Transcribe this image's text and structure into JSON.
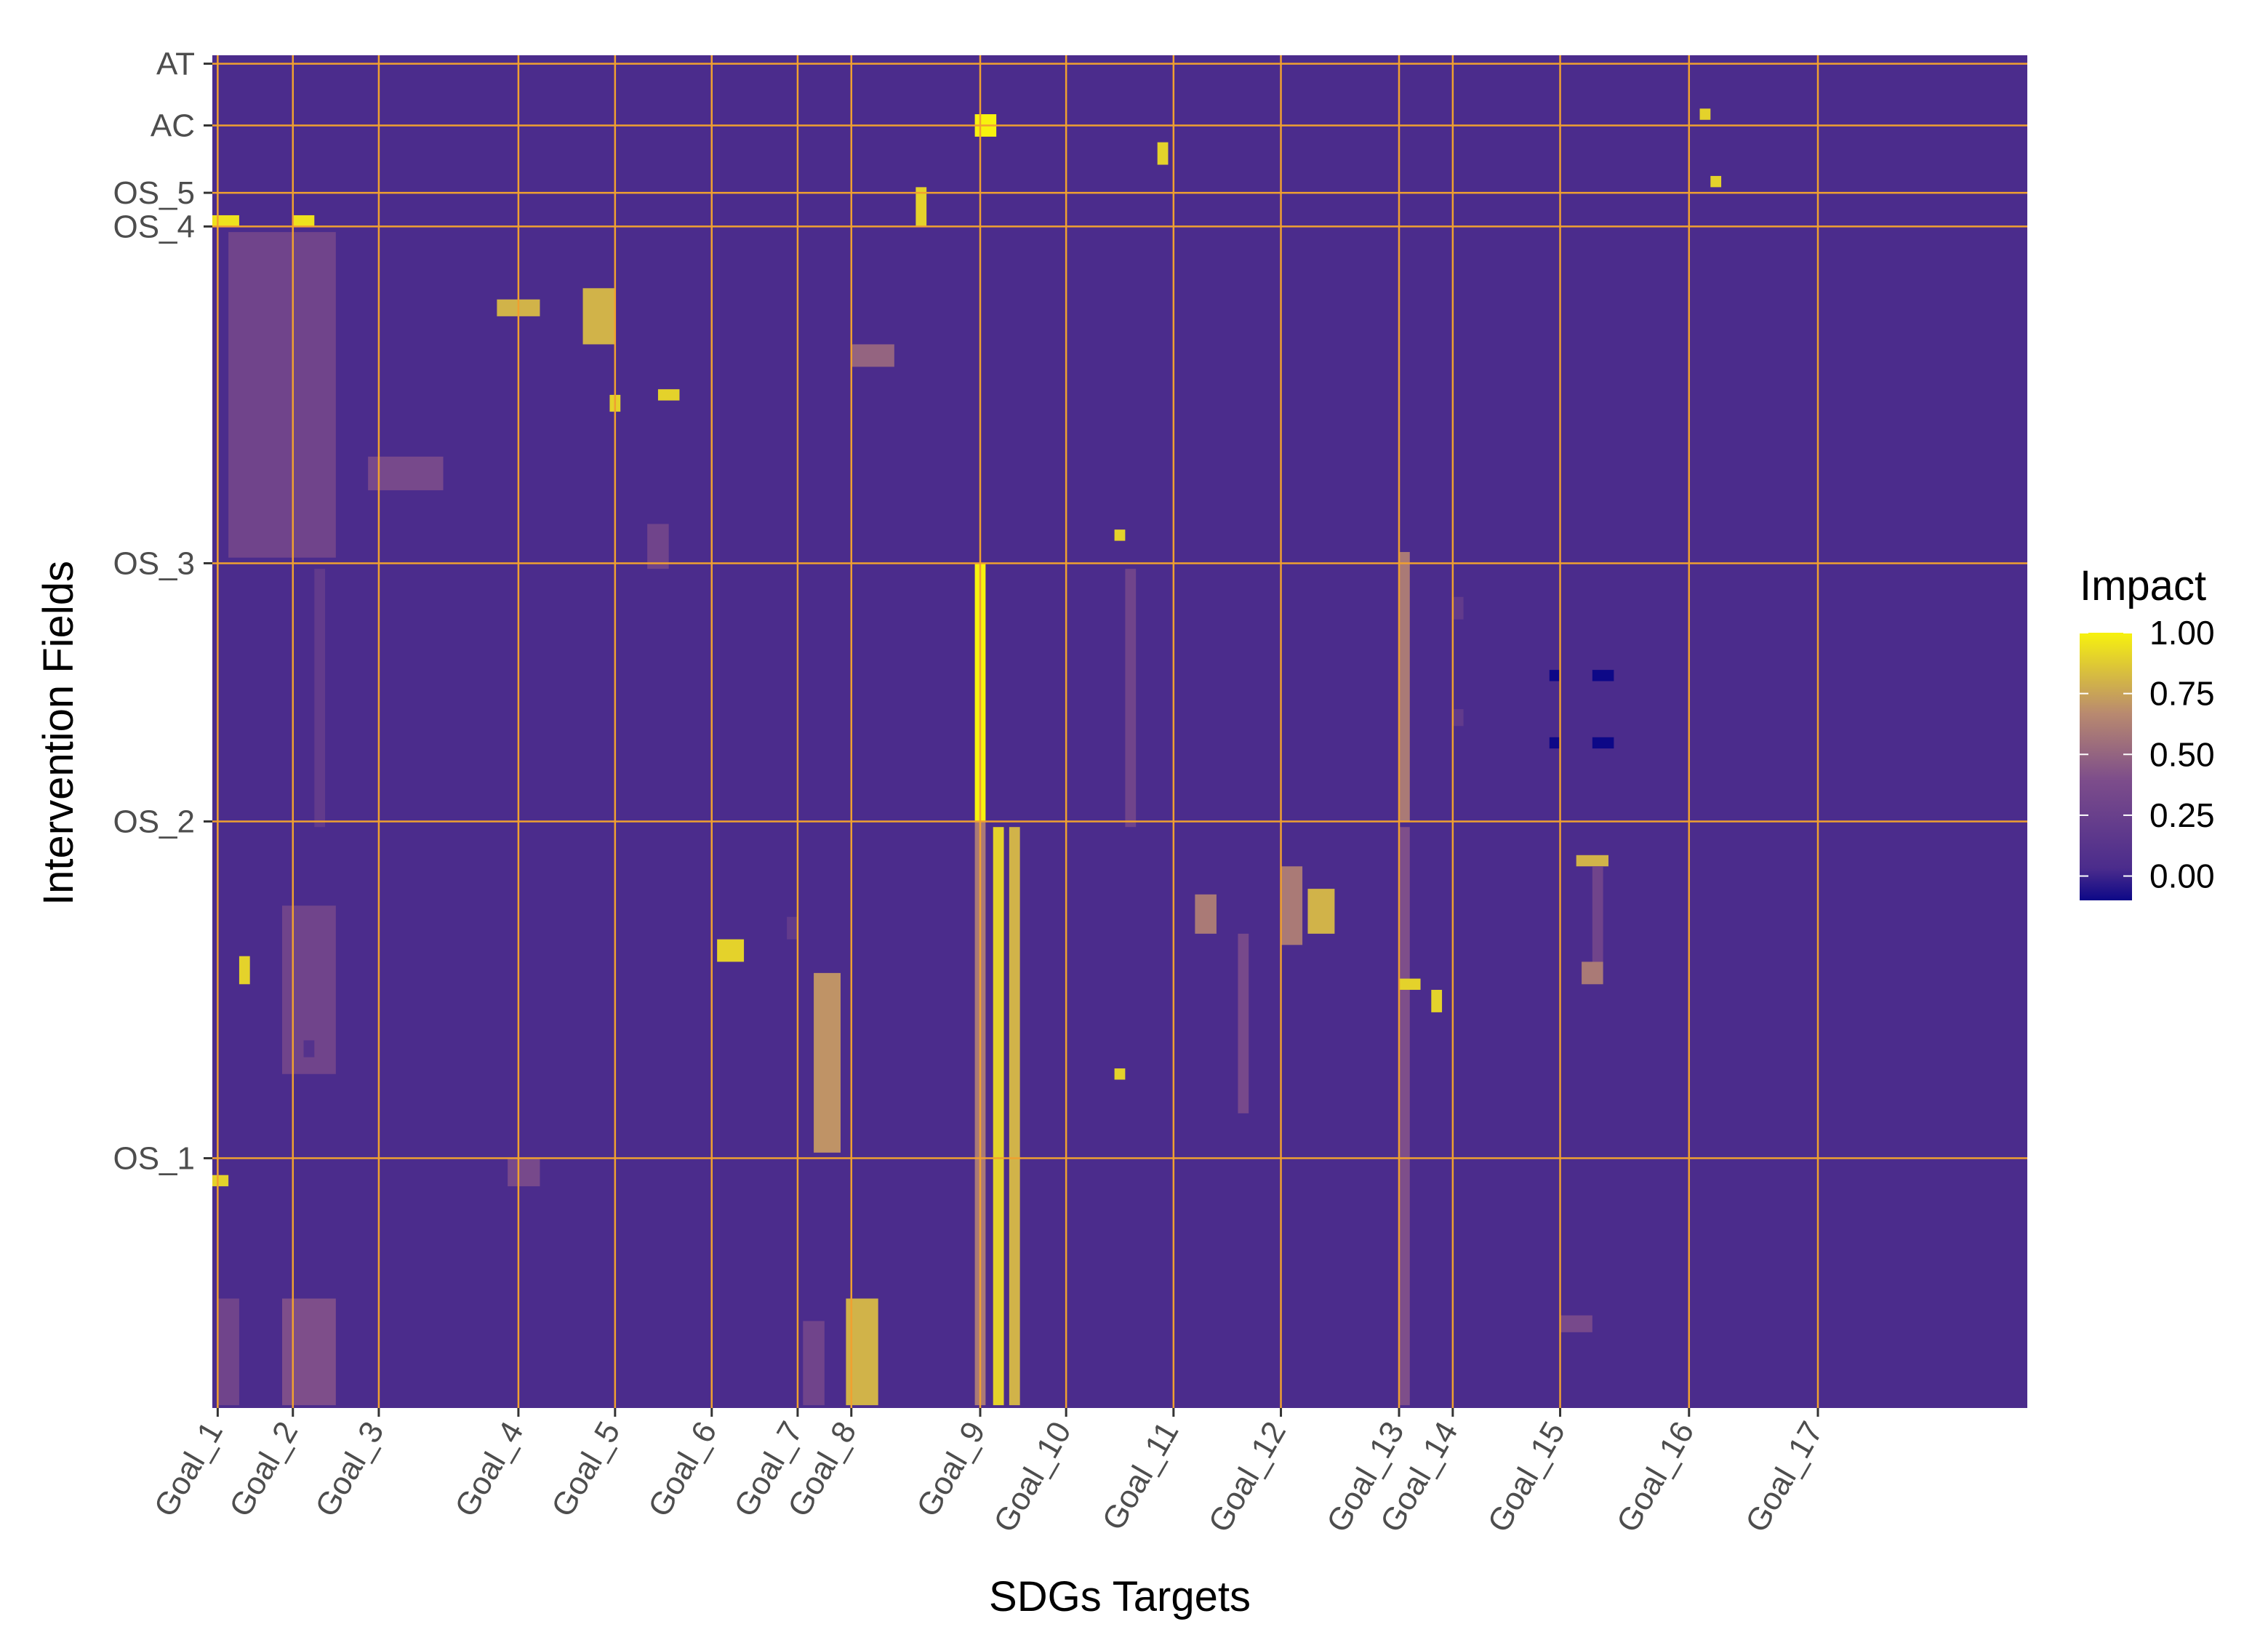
{
  "chart_data": {
    "type": "heatmap",
    "title": "",
    "xlabel": "SDGs Targets",
    "ylabel": "Intervention Fields",
    "x_tick_labels": [
      "Goal_1",
      "Goal_2",
      "Goal_3",
      "Goal_4",
      "Goal_5",
      "Goal_6",
      "Goal_7",
      "Goal_8",
      "Goal_9",
      "Goal_10",
      "Goal_11",
      "Goal_12",
      "Goal_13",
      "Goal_14",
      "Goal_15",
      "Goal_16",
      "Goal_17"
    ],
    "x_tick_positions": [
      1,
      8,
      16,
      29,
      38,
      47,
      55,
      60,
      72,
      80,
      90,
      100,
      111,
      116,
      126,
      138,
      150
    ],
    "x_range": [
      0.5,
      169.5
    ],
    "y_tick_labels": [
      "OS_1",
      "OS_2",
      "OS_3",
      "OS_4",
      "OS_5",
      "AC",
      "AT"
    ],
    "y_tick_positions": [
      45,
      105,
      151,
      211,
      217,
      229,
      240
    ],
    "y_range": [
      0.5,
      241.5
    ],
    "legend": {
      "title": "Impact",
      "ticks": [
        1.0,
        0.75,
        0.5,
        0.25,
        0.0
      ],
      "tick_labels": [
        "1.00",
        "0.75",
        "0.50",
        "0.25",
        "0.00"
      ],
      "range": [
        -0.1,
        1.0
      ],
      "placement": "right"
    },
    "colorscale": [
      "#0d0887",
      "#4b2c8c",
      "#7d4d8b",
      "#b98a6f",
      "#f7f20e"
    ],
    "background_value": 0.0,
    "background_color": "#4b2c8c",
    "gridline_color": "#f0a030",
    "approximate_cells": [
      {
        "x": [
          71.5,
          72.5
        ],
        "y": [
          105,
          151
        ],
        "v": 1.0
      },
      {
        "x": [
          71.5,
          72.5
        ],
        "y": [
          1,
          105
        ],
        "v": 0.6
      },
      {
        "x": [
          73.2,
          74.2
        ],
        "y": [
          1,
          104
        ],
        "v": 0.9
      },
      {
        "x": [
          74.7,
          75.7
        ],
        "y": [
          1,
          104
        ],
        "v": 0.8
      },
      {
        "x": [
          71.5,
          73.5
        ],
        "y": [
          227,
          231
        ],
        "v": 1.0
      },
      {
        "x": [
          111,
          112
        ],
        "y": [
          105,
          153
        ],
        "v": 0.6
      },
      {
        "x": [
          111,
          112
        ],
        "y": [
          1,
          104
        ],
        "v": 0.4
      },
      {
        "x": [
          85.5,
          86.5
        ],
        "y": [
          104,
          150
        ],
        "v": 0.3
      },
      {
        "x": [
          10,
          11
        ],
        "y": [
          104,
          150
        ],
        "v": 0.2
      },
      {
        "x": [
          56.5,
          59
        ],
        "y": [
          46,
          78
        ],
        "v": 0.7
      },
      {
        "x": [
          59.5,
          62.5
        ],
        "y": [
          1,
          20
        ],
        "v": 0.8
      },
      {
        "x": [
          55.5,
          57.5
        ],
        "y": [
          1,
          16
        ],
        "v": 0.3
      },
      {
        "x": [
          47.5,
          50
        ],
        "y": [
          80,
          84
        ],
        "v": 0.9
      },
      {
        "x": [
          100,
          102
        ],
        "y": [
          83,
          97
        ],
        "v": 0.6
      },
      {
        "x": [
          102.5,
          105
        ],
        "y": [
          85,
          93
        ],
        "v": 0.8
      },
      {
        "x": [
          2,
          12
        ],
        "y": [
          152,
          210
        ],
        "v": 0.3
      },
      {
        "x": [
          15,
          22
        ],
        "y": [
          164,
          170
        ],
        "v": 0.35
      },
      {
        "x": [
          27,
          31
        ],
        "y": [
          195,
          198
        ],
        "v": 0.8
      },
      {
        "x": [
          0.5,
          3
        ],
        "y": [
          211,
          213
        ],
        "v": 0.95
      },
      {
        "x": [
          8,
          10
        ],
        "y": [
          211,
          213
        ],
        "v": 0.95
      },
      {
        "x": [
          7,
          12
        ],
        "y": [
          1,
          20
        ],
        "v": 0.4
      },
      {
        "x": [
          7,
          12
        ],
        "y": [
          60,
          90
        ],
        "v": 0.3
      },
      {
        "x": [
          1,
          3
        ],
        "y": [
          1,
          20
        ],
        "v": 0.3
      },
      {
        "x": [
          28,
          31
        ],
        "y": [
          40,
          45
        ],
        "v": 0.35
      },
      {
        "x": [
          96,
          97
        ],
        "y": [
          53,
          85
        ],
        "v": 0.35
      },
      {
        "x": [
          92,
          94
        ],
        "y": [
          85,
          92
        ],
        "v": 0.6
      },
      {
        "x": [
          127.5,
          130.5
        ],
        "y": [
          97,
          99
        ],
        "v": 0.8
      },
      {
        "x": [
          129,
          130
        ],
        "y": [
          80,
          97
        ],
        "v": 0.3
      },
      {
        "x": [
          128,
          130
        ],
        "y": [
          76,
          80
        ],
        "v": 0.6
      },
      {
        "x": [
          114,
          115
        ],
        "y": [
          71,
          75
        ],
        "v": 0.9
      },
      {
        "x": [
          111,
          113
        ],
        "y": [
          75,
          77
        ],
        "v": 0.9
      },
      {
        "x": [
          0.5,
          2
        ],
        "y": [
          40,
          42
        ],
        "v": 0.9
      },
      {
        "x": [
          3,
          4
        ],
        "y": [
          76,
          81
        ],
        "v": 0.9
      },
      {
        "x": [
          9,
          10
        ],
        "y": [
          63,
          66
        ],
        "v": 0.1
      },
      {
        "x": [
          129,
          131
        ],
        "y": [
          130,
          132
        ],
        "v": -0.1
      },
      {
        "x": [
          125,
          126
        ],
        "y": [
          130,
          132
        ],
        "v": -0.1
      },
      {
        "x": [
          129,
          131
        ],
        "y": [
          118,
          120
        ],
        "v": -0.1
      },
      {
        "x": [
          125,
          126
        ],
        "y": [
          118,
          120
        ],
        "v": -0.1
      },
      {
        "x": [
          116,
          117
        ],
        "y": [
          141,
          145
        ],
        "v": 0.2
      },
      {
        "x": [
          116,
          117
        ],
        "y": [
          122,
          125
        ],
        "v": 0.2
      },
      {
        "x": [
          126,
          129
        ],
        "y": [
          14,
          17
        ],
        "v": 0.35
      },
      {
        "x": [
          84.5,
          85.5
        ],
        "y": [
          59,
          61
        ],
        "v": 0.9
      },
      {
        "x": [
          84.5,
          85.5
        ],
        "y": [
          155,
          157
        ],
        "v": 0.9
      },
      {
        "x": [
          37.5,
          38.5
        ],
        "y": [
          178,
          181
        ],
        "v": 0.9
      },
      {
        "x": [
          42,
          44
        ],
        "y": [
          180,
          182
        ],
        "v": 0.9
      },
      {
        "x": [
          66,
          67
        ],
        "y": [
          211,
          218
        ],
        "v": 0.9
      },
      {
        "x": [
          88.5,
          89.5
        ],
        "y": [
          222,
          226
        ],
        "v": 0.9
      },
      {
        "x": [
          139,
          140
        ],
        "y": [
          230,
          232
        ],
        "v": 0.9
      },
      {
        "x": [
          140,
          141
        ],
        "y": [
          218,
          220
        ],
        "v": 0.9
      },
      {
        "x": [
          54,
          55
        ],
        "y": [
          84,
          88
        ],
        "v": 0.2
      },
      {
        "x": [
          60,
          64
        ],
        "y": [
          186,
          190
        ],
        "v": 0.5
      },
      {
        "x": [
          35,
          38
        ],
        "y": [
          190,
          200
        ],
        "v": 0.8
      },
      {
        "x": [
          41,
          43
        ],
        "y": [
          150,
          158
        ],
        "v": 0.3
      }
    ]
  }
}
